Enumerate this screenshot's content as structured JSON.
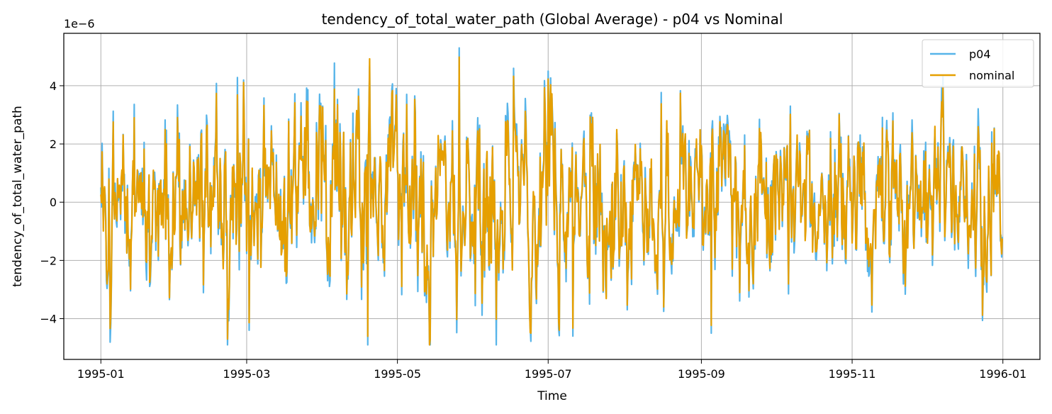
{
  "chart_data": {
    "type": "line",
    "title": "tendency_of_total_water_path (Global Average) - p04 vs Nominal",
    "xlabel": "Time",
    "ylabel": "tendency_of_total_water_path",
    "y_scale_label": "1e−6",
    "x_range": [
      -15,
      380
    ],
    "ylim": [
      -5.4,
      5.8
    ],
    "x_ticks": [
      {
        "day": 0,
        "label": "1995-01"
      },
      {
        "day": 59,
        "label": "1995-03"
      },
      {
        "day": 120,
        "label": "1995-05"
      },
      {
        "day": 181,
        "label": "1995-07"
      },
      {
        "day": 243,
        "label": "1995-09"
      },
      {
        "day": 304,
        "label": "1995-11"
      },
      {
        "day": 365,
        "label": "1996-01"
      }
    ],
    "y_ticks": [
      {
        "value": 4,
        "label": "4"
      },
      {
        "value": 2,
        "label": "2"
      },
      {
        "value": 0,
        "label": "0"
      },
      {
        "value": -2,
        "label": "−2"
      },
      {
        "value": -4,
        "label": "−4"
      }
    ],
    "grid": true,
    "legend_position": "top-right",
    "x_unit": "days since 1995-01-01 (6-hourly samples)",
    "series": [
      {
        "name": "p04",
        "color": "#56b4e9",
        "start_day": 0,
        "end_day": 364.75,
        "step_days": 0.25,
        "mean": 0.0,
        "std": 1.55,
        "min": -4.9,
        "max": 5.3
      },
      {
        "name": "nominal",
        "color": "#e69f00",
        "start_day": 0,
        "end_day": 364.75,
        "step_days": 0.25,
        "mean": 0.0,
        "std": 1.45,
        "min": -4.9,
        "max": 5.0
      }
    ],
    "series_extrema": [
      {
        "day": 145,
        "value": 5.3
      },
      {
        "day": 167,
        "value": 4.6
      },
      {
        "day": 181,
        "value": 4.5
      },
      {
        "day": 108,
        "value": -4.9
      },
      {
        "day": 60,
        "value": -4.4
      },
      {
        "day": 191,
        "value": -4.6
      },
      {
        "day": 247,
        "value": -4.5
      }
    ]
  }
}
